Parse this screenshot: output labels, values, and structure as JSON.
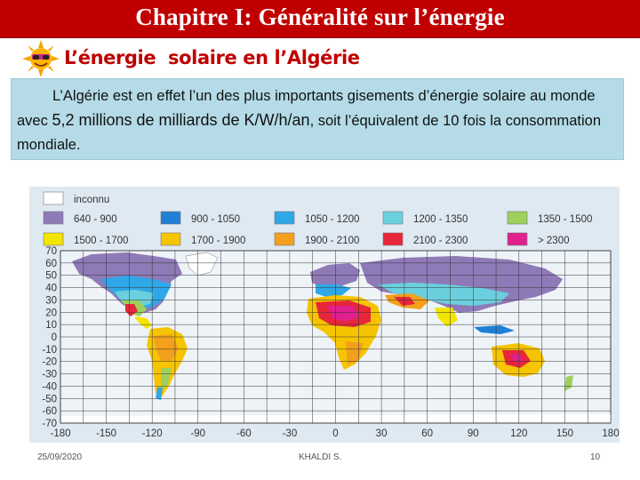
{
  "header": {
    "title": "Chapitre I: Généralité sur l’énergie"
  },
  "section": {
    "subtitle": "L’énergie  solaire en l’Algérie",
    "icon": "sun-with-sunglasses-icon"
  },
  "paragraph": {
    "part1": "L’Algérie est en effet l’un des plus importants gisements d’énergie solaire au monde avec ",
    "part2": "5,2 millions de milliards de K/W/h/an",
    "part3": ", soit l’équivalent de 10 fois la consommation mondiale."
  },
  "map": {
    "legend": [
      {
        "label": "inconnu",
        "color": "#ffffff"
      },
      {
        "label": "640 - 900",
        "color": "#8f7ab8"
      },
      {
        "label": "900 - 1050",
        "color": "#1f7fd6"
      },
      {
        "label": "1050 - 1200",
        "color": "#2ea8e8"
      },
      {
        "label": "1200 - 1350",
        "color": "#6ad0de"
      },
      {
        "label": "1350 - 1500",
        "color": "#9ed05c"
      },
      {
        "label": "1500 - 1700",
        "color": "#f2e600"
      },
      {
        "label": "1700 - 1900",
        "color": "#f6c400"
      },
      {
        "label": "1900 - 2100",
        "color": "#f3a01c"
      },
      {
        "label": "2100 - 2300",
        "color": "#e8263a"
      },
      {
        "label": "> 2300",
        "color": "#e0208c"
      }
    ],
    "lat_ticks": [
      "70",
      "60",
      "50",
      "40",
      "30",
      "20",
      "10",
      "0",
      "-10",
      "-20",
      "-30",
      "-40",
      "-50",
      "-60",
      "-70"
    ],
    "lon_ticks": [
      "-180",
      "-150",
      "-120",
      "-90",
      "-60",
      "-30",
      "0",
      "30",
      "60",
      "90",
      "120",
      "150",
      "180"
    ]
  },
  "footer": {
    "date": "25/09/2020",
    "author": "KHALDI S.",
    "page": "10"
  }
}
